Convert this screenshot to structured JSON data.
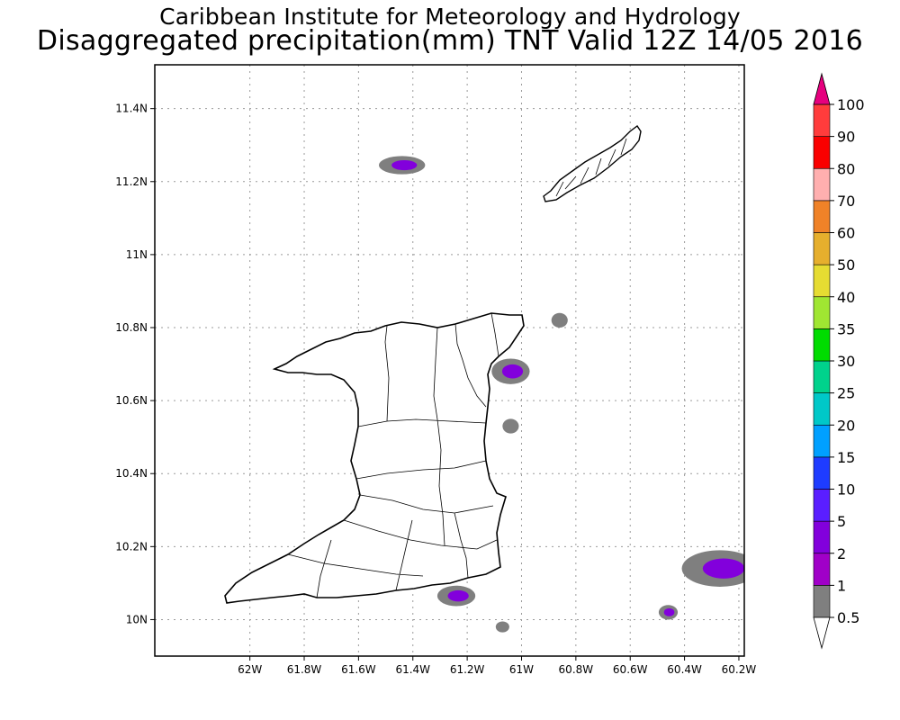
{
  "header": {
    "line1": "Caribbean Institute for Meteorology and Hydrology",
    "line2": "Disaggregated precipitation(mm) TNT Valid 12Z 14/05 2016"
  },
  "map": {
    "lon_range": [
      -62.35,
      -60.18
    ],
    "lat_range": [
      9.9,
      11.52
    ],
    "lon_ticks": [
      {
        "v": -62.0,
        "label": "62W"
      },
      {
        "v": -61.8,
        "label": "61.8W"
      },
      {
        "v": -61.6,
        "label": "61.6W"
      },
      {
        "v": -61.4,
        "label": "61.4W"
      },
      {
        "v": -61.2,
        "label": "61.2W"
      },
      {
        "v": -61.0,
        "label": "61W"
      },
      {
        "v": -60.8,
        "label": "60.8W"
      },
      {
        "v": -60.6,
        "label": "60.6W"
      },
      {
        "v": -60.4,
        "label": "60.4W"
      },
      {
        "v": -60.2,
        "label": "60.2W"
      }
    ],
    "lat_ticks": [
      {
        "v": 10.0,
        "label": "10N"
      },
      {
        "v": 10.2,
        "label": "10.2N"
      },
      {
        "v": 10.4,
        "label": "10.4N"
      },
      {
        "v": 10.6,
        "label": "10.6N"
      },
      {
        "v": 10.8,
        "label": "10.8N"
      },
      {
        "v": 11.0,
        "label": "11N"
      },
      {
        "v": 11.2,
        "label": "11.2N"
      },
      {
        "v": 11.4,
        "label": "11.4N"
      }
    ],
    "grid": true
  },
  "colorbar": {
    "levels": [
      "0.5",
      "1",
      "2",
      "5",
      "10",
      "15",
      "20",
      "25",
      "30",
      "35",
      "40",
      "50",
      "60",
      "70",
      "80",
      "90",
      "100"
    ],
    "colors": [
      "#7f7f7f",
      "#a000c8",
      "#8200dc",
      "#5a1eff",
      "#1e3cff",
      "#00a0ff",
      "#00c8c8",
      "#00d28c",
      "#00dc00",
      "#a0e632",
      "#e6dc32",
      "#e6af2d",
      "#f08228",
      "#ffafaf",
      "#fa0000",
      "#ff3c3c"
    ],
    "low_arrow_color": "#ffffff",
    "high_arrow_color": "#e6007e"
  },
  "precip_areas": [
    {
      "name": "north-trinidad-offshore",
      "lon": -61.44,
      "lat": 11.245,
      "rx": 0.085,
      "ry": 0.025,
      "level": "0.5",
      "core": true
    },
    {
      "name": "northeast-coast",
      "lon": -61.04,
      "lat": 10.68,
      "rx": 0.07,
      "ry": 0.035,
      "level": "0.5",
      "core": true
    },
    {
      "name": "east-coast",
      "lon": -61.04,
      "lat": 10.53,
      "rx": 0.03,
      "ry": 0.02,
      "level": "0.5",
      "core": false
    },
    {
      "name": "galera-point",
      "lon": -60.86,
      "lat": 10.82,
      "rx": 0.03,
      "ry": 0.02,
      "level": "0.5",
      "core": false
    },
    {
      "name": "south-coast",
      "lon": -61.24,
      "lat": 10.065,
      "rx": 0.07,
      "ry": 0.028,
      "level": "0.5",
      "core": true
    },
    {
      "name": "south-coast-small",
      "lon": -61.07,
      "lat": 9.98,
      "rx": 0.025,
      "ry": 0.015,
      "level": "0.5",
      "core": false
    },
    {
      "name": "southeast-offshore-small",
      "lon": -60.46,
      "lat": 10.02,
      "rx": 0.035,
      "ry": 0.02,
      "level": "0.5",
      "core": true
    },
    {
      "name": "southeast-offshore-large",
      "lon": -60.27,
      "lat": 10.14,
      "rx": 0.14,
      "ry": 0.05,
      "level": "0.5",
      "core": true
    }
  ]
}
